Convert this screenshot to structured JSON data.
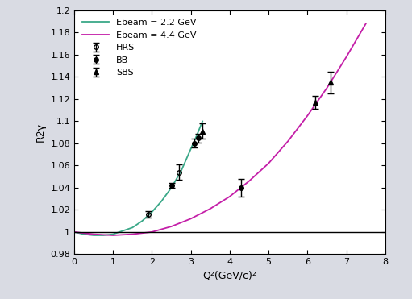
{
  "chart_data": {
    "type": "line",
    "x_label": "Q²(GeV/c)²",
    "y_label": "R2γ",
    "xlim": [
      0,
      8
    ],
    "ylim": [
      0.98,
      1.2
    ],
    "xticks": [
      0,
      1,
      2,
      3,
      4,
      5,
      6,
      7,
      8
    ],
    "yticks": [
      0.98,
      1,
      1.02,
      1.04,
      1.06,
      1.08,
      1.1,
      1.12,
      1.14,
      1.16,
      1.18,
      1.2
    ],
    "hline": 1,
    "legend": "upper left",
    "grid": false,
    "series": [
      {
        "name": "Ebeam = 2.2 GeV",
        "type": "line",
        "color": "#3aa888",
        "line_style": "solid",
        "x": [
          0,
          0.25,
          0.5,
          0.75,
          1.0,
          1.25,
          1.5,
          1.75,
          2.0,
          2.25,
          2.5,
          2.75,
          3.0,
          3.15,
          3.3
        ],
        "values": [
          1.0,
          0.998,
          0.997,
          0.997,
          0.998,
          1.001,
          1.004,
          1.01,
          1.018,
          1.028,
          1.04,
          1.055,
          1.075,
          1.087,
          1.1
        ]
      },
      {
        "name": "Ebeam = 4.4 GeV",
        "type": "line",
        "color": "#c41fa8",
        "line_style": "solid",
        "x": [
          0,
          0.5,
          1.0,
          1.5,
          2.0,
          2.5,
          3.0,
          3.5,
          4.0,
          4.5,
          5.0,
          5.5,
          6.0,
          6.5,
          7.0,
          7.5
        ],
        "values": [
          1.0,
          0.998,
          0.997,
          0.998,
          1.0,
          1.005,
          1.012,
          1.021,
          1.032,
          1.046,
          1.062,
          1.082,
          1.105,
          1.13,
          1.158,
          1.188
        ]
      },
      {
        "name": "HRS",
        "type": "scatter",
        "color": "#000000",
        "marker": "open_circle",
        "x": [
          1.9,
          2.7
        ],
        "values": [
          1.016,
          1.054
        ],
        "errors": [
          0.003,
          0.007
        ]
      },
      {
        "name": "BB",
        "type": "scatter",
        "color": "#000000",
        "marker": "circle",
        "x": [
          2.5,
          3.1,
          3.2,
          4.3
        ],
        "values": [
          1.042,
          1.08,
          1.085,
          1.04
        ],
        "errors": [
          0.002,
          0.004,
          0.004,
          0.008
        ]
      },
      {
        "name": "SBS",
        "type": "scatter",
        "color": "#000000",
        "marker": "triangle",
        "x": [
          3.3,
          6.2,
          6.6
        ],
        "values": [
          1.091,
          1.117,
          1.135
        ],
        "errors": [
          0.007,
          0.006,
          0.01
        ]
      }
    ]
  }
}
